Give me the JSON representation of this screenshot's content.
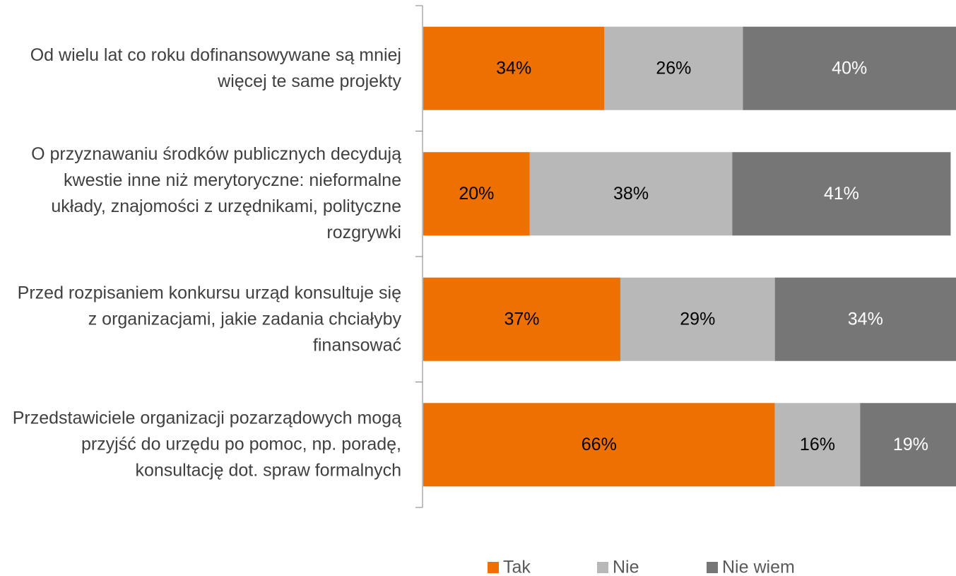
{
  "chart_data": {
    "type": "stacked-bar-horizontal",
    "categories": [
      "Od wielu lat co roku dofinansowywane są mniej więcej te same projekty",
      "O przyznawaniu środków publicznych decydują kwestie inne niż merytoryczne: nieformalne układy, znajomości z urzędnikami, polityczne rozgrywki",
      "Przed rozpisaniem konkursu urząd konsultuje się z organizacjami, jakie zadania chciałyby finansować",
      "Przedstawiciele organizacji pozarządowych mogą przyjść do urzędu po pomoc, np. poradę, konsultację dot. spraw formalnych"
    ],
    "series": [
      {
        "name": "Tak",
        "color": "#ED7000",
        "values": [
          34,
          20,
          37,
          66
        ],
        "value_labels": [
          "34%",
          "20%",
          "37%",
          "66%"
        ]
      },
      {
        "name": "Nie",
        "color": "#B8B8B8",
        "values": [
          26,
          38,
          29,
          16
        ],
        "value_labels": [
          "26%",
          "38%",
          "29%",
          "16%"
        ]
      },
      {
        "name": "Nie wiem",
        "color": "#767676",
        "values": [
          40,
          41,
          34,
          19
        ],
        "value_labels": [
          "40%",
          "41%",
          "34%",
          "19%"
        ]
      }
    ],
    "xlim": [
      0,
      100
    ],
    "legend": "bottom"
  }
}
